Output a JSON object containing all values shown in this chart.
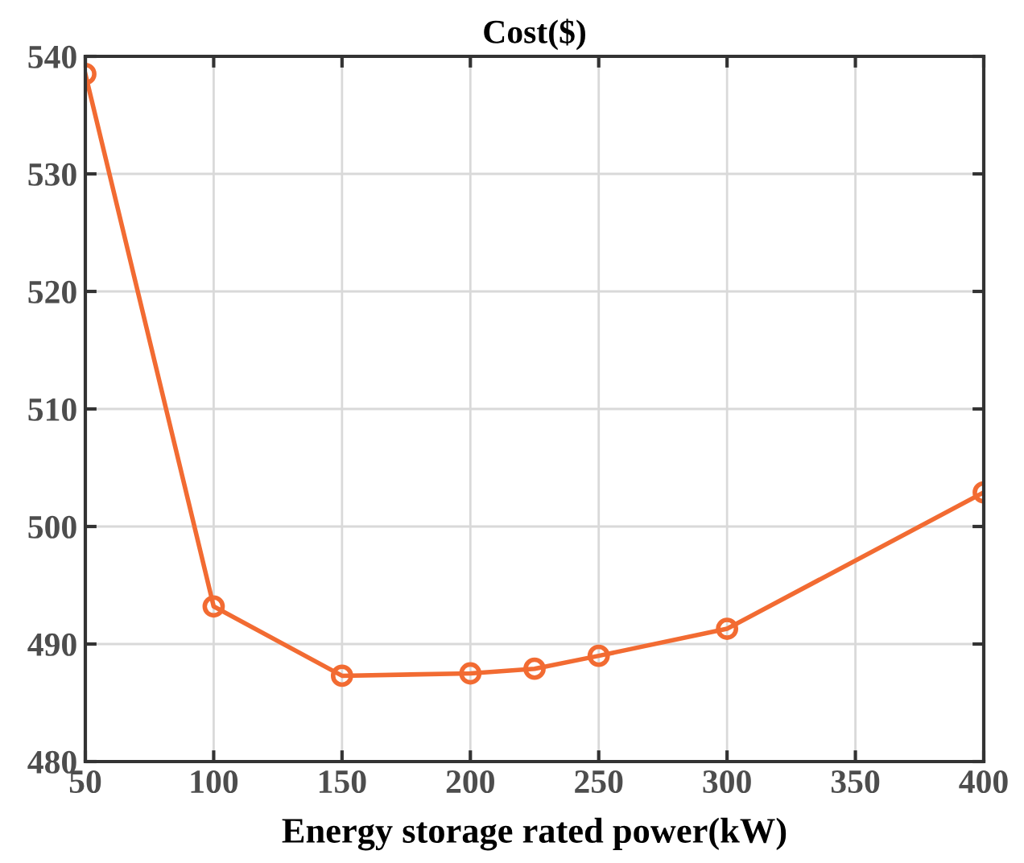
{
  "chart_data": {
    "type": "line",
    "title": "Cost($)",
    "xlabel": "Energy storage rated power(kW)",
    "x": [
      50,
      100,
      150,
      200,
      225,
      250,
      300,
      400
    ],
    "series": [
      {
        "color": "#f26b32",
        "values": [
          538.5,
          493.2,
          487.3,
          487.5,
          487.9,
          489.0,
          491.3,
          502.9
        ]
      }
    ],
    "xlim": [
      50,
      400
    ],
    "xticks": [
      50,
      100,
      150,
      200,
      250,
      300,
      350,
      400
    ],
    "ylim": [
      480,
      540
    ],
    "yticks": [
      480,
      490,
      500,
      510,
      520,
      530,
      540
    ],
    "grid": true,
    "marker": "circle",
    "line_style": "solid",
    "legend": false
  }
}
